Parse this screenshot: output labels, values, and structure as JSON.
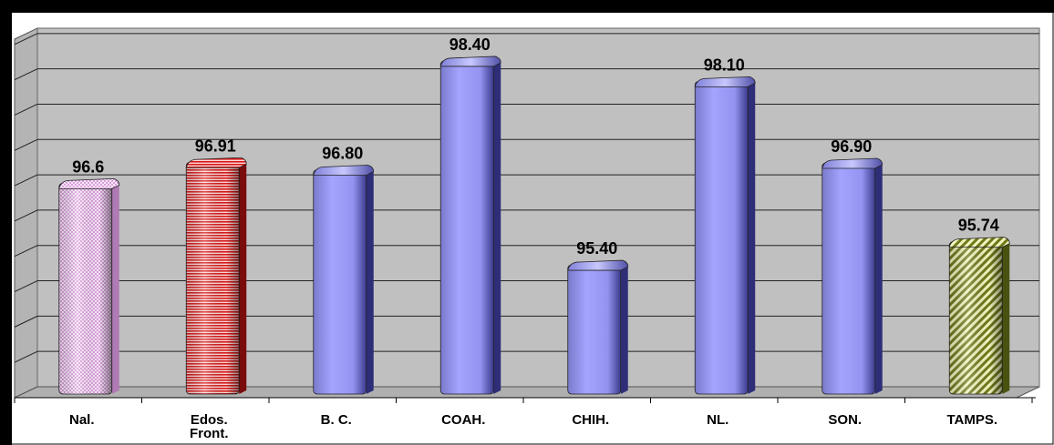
{
  "chart_data": {
    "type": "bar",
    "categories": [
      "Nal.",
      "Edos.\nFront.",
      "B. C.",
      "COAH.",
      "CHIH.",
      "NL.",
      "SON.",
      "TAMPS."
    ],
    "values": [
      96.6,
      96.91,
      96.8,
      98.4,
      95.4,
      98.1,
      96.9,
      95.74
    ],
    "data_labels": [
      "96.6",
      "96.91",
      "96.80",
      "98.40",
      "95.40",
      "98.10",
      "96.90",
      "95.74"
    ],
    "ylim": [
      93.5,
      98.6
    ],
    "grid": true,
    "legend": "none",
    "bar_styles": [
      "pink-checker",
      "red-stripes",
      "solid",
      "solid",
      "solid",
      "solid",
      "solid",
      "yellow-diagonal"
    ],
    "colors": {
      "solid_bar": "#9999ff",
      "solid_bar_dark": "#3b3b8f",
      "pink_bar": "#f2c6f2",
      "red_bar": "#e02020",
      "yellow_bar": "#d8e070",
      "wall": "#c0c0c0",
      "grid": "#222222"
    }
  }
}
